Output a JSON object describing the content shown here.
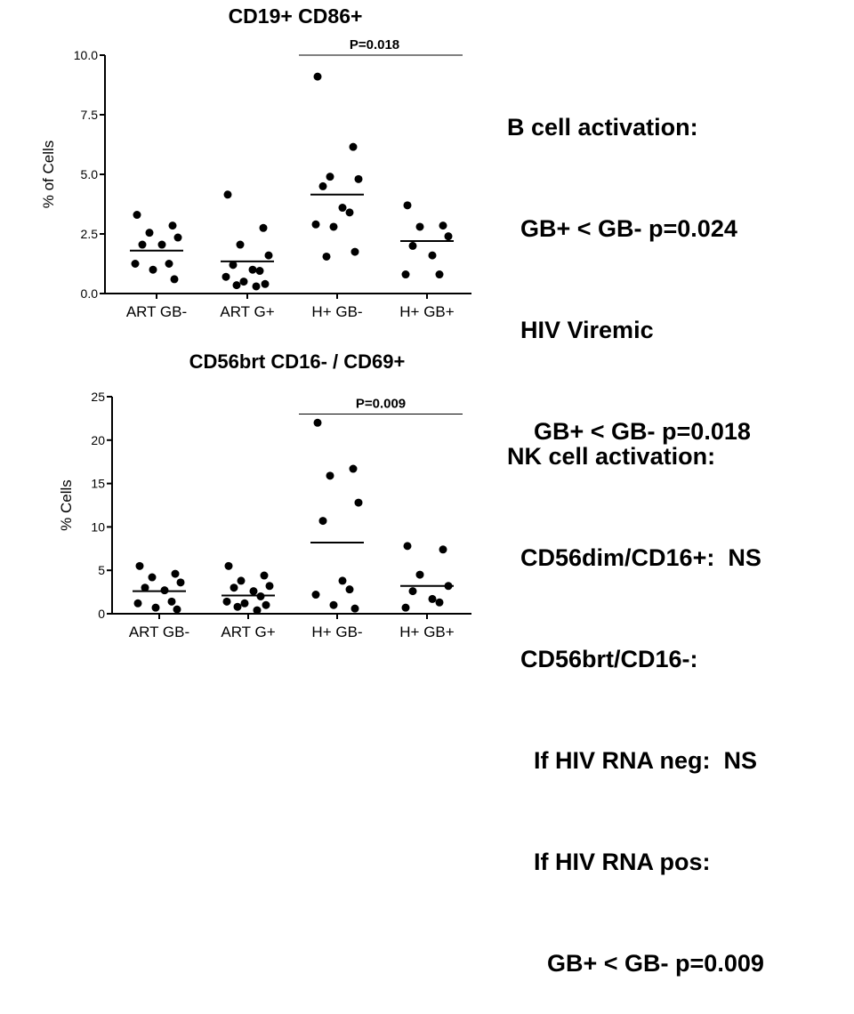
{
  "chart_data": [
    {
      "type": "scatter",
      "title": "CD19+ CD86+",
      "xlabel": "",
      "ylabel": "% of Cells",
      "categories": [
        "ART GB-",
        "ART G+",
        "H+ GB-",
        "H+ GB+"
      ],
      "ylim": [
        0,
        10
      ],
      "yticks": [
        "0.0",
        "2.5",
        "5.0",
        "7.5",
        "10.0"
      ],
      "grid": false,
      "series": [
        {
          "category": "ART GB-",
          "values": [
            3.3,
            2.85,
            2.55,
            2.35,
            2.05,
            2.05,
            1.25,
            1.25,
            1.0,
            0.6
          ],
          "mean": 1.8
        },
        {
          "category": "ART G+",
          "values": [
            4.15,
            2.75,
            2.05,
            1.6,
            1.2,
            1.0,
            0.95,
            0.7,
            0.5,
            0.4,
            0.35,
            0.3
          ],
          "mean": 1.35
        },
        {
          "category": "H+ GB-",
          "values": [
            9.1,
            6.15,
            4.9,
            4.8,
            4.5,
            3.6,
            3.4,
            2.9,
            2.8,
            1.75,
            1.55
          ],
          "mean": 4.15
        },
        {
          "category": "H+ GB+",
          "values": [
            3.7,
            2.85,
            2.8,
            2.4,
            2.0,
            1.6,
            0.8,
            0.8
          ],
          "mean": 2.2
        }
      ],
      "annotation": {
        "text": "P=0.018",
        "between": [
          "H+ GB-",
          "H+ GB+"
        ],
        "y": 10.0
      }
    },
    {
      "type": "scatter",
      "title": "CD56brt CD16- / CD69+",
      "xlabel": "",
      "ylabel": "% Cells",
      "categories": [
        "ART GB-",
        "ART G+",
        "H+ GB-",
        "H+ GB+"
      ],
      "ylim": [
        0,
        25
      ],
      "yticks": [
        "0",
        "5",
        "10",
        "15",
        "20",
        "25"
      ],
      "grid": false,
      "series": [
        {
          "category": "ART GB-",
          "values": [
            5.5,
            4.6,
            4.2,
            3.6,
            3.0,
            2.7,
            1.4,
            1.2,
            0.7,
            0.5
          ],
          "mean": 2.6
        },
        {
          "category": "ART G+",
          "values": [
            5.5,
            4.4,
            3.8,
            3.2,
            3.0,
            2.6,
            2.0,
            1.4,
            1.2,
            1.0,
            0.8,
            0.4
          ],
          "mean": 2.1
        },
        {
          "category": "H+ GB-",
          "values": [
            22.0,
            16.7,
            15.9,
            12.8,
            10.7,
            3.8,
            2.8,
            2.2,
            1.0,
            0.6
          ],
          "mean": 8.2
        },
        {
          "category": "H+ GB+",
          "values": [
            7.8,
            7.4,
            4.5,
            3.2,
            2.6,
            1.7,
            1.3,
            0.7
          ],
          "mean": 3.2
        }
      ],
      "annotation": {
        "text": "P=0.009",
        "between": [
          "H+ GB-",
          "H+ GB+"
        ],
        "y": 23.0
      }
    }
  ],
  "sidepanel_b": [
    "B cell activation:",
    "  GB+ < GB- p=0.024",
    "  HIV Viremic",
    "    GB+ < GB- p=0.018"
  ],
  "sidepanel_nk": [
    "NK cell activation:",
    "  CD56dim/CD16+:  NS",
    "  CD56brt/CD16-:",
    "    If HIV RNA neg:  NS",
    "    If HIV RNA pos:",
    "      GB+ < GB- p=0.009"
  ]
}
